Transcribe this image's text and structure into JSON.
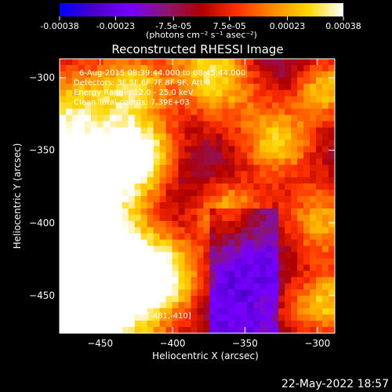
{
  "colorbar": {
    "ticks": [
      "-0.00038",
      "-0.00023",
      "-7.5e-05",
      "7.5e-05",
      "0.00023",
      "0.00038"
    ],
    "tick_values": [
      -0.00038,
      -0.00023,
      -7.5e-05,
      7.5e-05,
      0.00023,
      0.00038
    ],
    "range": [
      -0.00038,
      0.00038
    ],
    "unit_label": "(photons cm⁻² s⁻¹ asec⁻²)",
    "colors": [
      "#0000ff",
      "#4b00c8",
      "#7800ff",
      "#8a1670",
      "#b00000",
      "#ff3000",
      "#ff8a00",
      "#ffd700",
      "#ffffff"
    ]
  },
  "chart_data": {
    "type": "heatmap",
    "title": "Reconstructed RHESSI Image",
    "xlabel": "Heliocentric X (arcsec)",
    "ylabel": "Heliocentric Y (arcsec)",
    "xlim": [
      -478,
      -288
    ],
    "ylim": [
      -476,
      -287
    ],
    "xticks": [
      -450,
      -400,
      -350,
      -300
    ],
    "yticks": [
      -300,
      -350,
      -400,
      -450
    ],
    "annotations": [
      "6-Aug-2015 08:39:44.000 to 08:45:44.000",
      "Detectors: 3F 5F 6F 7F 8F 9F, Att 0",
      "Energy Range: 12.0 - 25.0 keV",
      "Clean     Total counts: 7.39E+03"
    ],
    "peak_label": "Position of Peak = [-481,-410]",
    "peak_position": [
      -481,
      -410
    ]
  },
  "footer": {
    "timestamp": "22-May-2022 18:57"
  }
}
